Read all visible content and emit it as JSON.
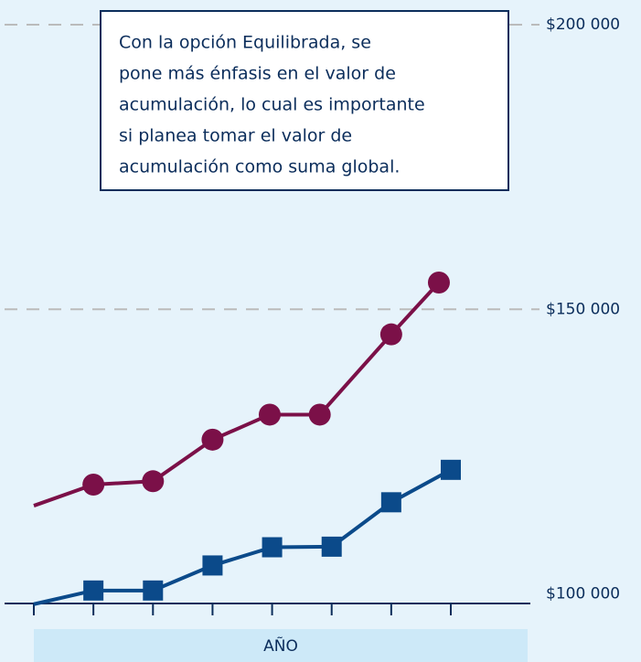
{
  "chart_data": {
    "type": "line",
    "xlabel": "AÑO",
    "x": [
      0,
      1,
      2,
      3,
      4,
      5,
      6,
      7
    ],
    "xlim": [
      0,
      7
    ],
    "xticks": [
      0,
      1,
      2,
      3,
      4,
      5,
      6,
      7
    ],
    "ylim": [
      98000,
      200000
    ],
    "yticks": [
      {
        "value": 100000,
        "label": "$100 000"
      },
      {
        "value": 150000,
        "label": "$150 000"
      },
      {
        "value": 200000,
        "label": "$200 000"
      }
    ],
    "grid": true,
    "annotation": [
      "Con la opción Equilibrada, se",
      "pone más énfasis en el valor de",
      "acumulación, lo cual es importante",
      "si planea tomar el valor de",
      "acumulación como suma global."
    ],
    "series": [
      {
        "color": "#7b1048",
        "marker": "circle",
        "x": [
          0,
          1,
          2,
          3,
          3.96,
          4.8,
          6,
          6.8
        ],
        "values": [
          115500,
          119200,
          119800,
          127100,
          131500,
          131500,
          145600,
          154700
        ]
      },
      {
        "color": "#0b4a8a",
        "marker": "square",
        "x": [
          0,
          1,
          2,
          3,
          4,
          5,
          6,
          7
        ],
        "values": [
          98200,
          100600,
          100600,
          105000,
          108200,
          108300,
          116100,
          121800
        ]
      }
    ]
  }
}
